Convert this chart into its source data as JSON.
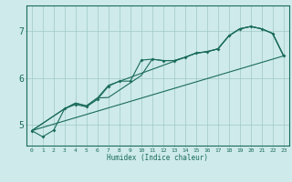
{
  "xlabel": "Humidex (Indice chaleur)",
  "bg_color": "#ceeaea",
  "grid_color": "#9fc8c8",
  "line_color": "#1a6b5a",
  "xlim": [
    -0.5,
    23.5
  ],
  "ylim": [
    4.55,
    7.55
  ],
  "yticks": [
    5,
    6,
    7
  ],
  "xticks": [
    0,
    1,
    2,
    3,
    4,
    5,
    6,
    7,
    8,
    9,
    10,
    11,
    12,
    13,
    14,
    15,
    16,
    17,
    18,
    19,
    20,
    21,
    22,
    23
  ],
  "series_main_x": [
    0,
    1,
    2,
    3,
    4,
    5,
    6,
    7,
    8,
    9,
    10,
    11,
    12,
    13,
    14,
    15,
    16,
    17,
    18,
    19,
    20,
    21,
    22,
    23
  ],
  "series_main_y": [
    4.87,
    4.74,
    4.88,
    5.34,
    5.43,
    5.38,
    5.54,
    5.82,
    5.93,
    5.93,
    6.38,
    6.4,
    6.37,
    6.37,
    6.44,
    6.53,
    6.56,
    6.62,
    6.9,
    7.05,
    7.1,
    7.05,
    6.95,
    6.47
  ],
  "series2_x": [
    0,
    3,
    4,
    5,
    6,
    7,
    10,
    11,
    12,
    13,
    14,
    15,
    16,
    17,
    18,
    19,
    20,
    21,
    22,
    23
  ],
  "series2_y": [
    4.87,
    5.34,
    5.46,
    5.4,
    5.57,
    5.58,
    6.05,
    6.4,
    6.37,
    6.37,
    6.44,
    6.53,
    6.56,
    6.62,
    6.9,
    7.05,
    7.1,
    7.05,
    6.95,
    6.47
  ],
  "series3_x": [
    0,
    3,
    4,
    5,
    6,
    7,
    14,
    15,
    16,
    17,
    18,
    19,
    20,
    21,
    22,
    23
  ],
  "series3_y": [
    4.87,
    5.34,
    5.46,
    5.4,
    5.57,
    5.84,
    6.44,
    6.53,
    6.56,
    6.62,
    6.9,
    7.05,
    7.1,
    7.05,
    6.95,
    6.47
  ],
  "trend_x": [
    0,
    23
  ],
  "trend_y": [
    4.87,
    6.47
  ]
}
